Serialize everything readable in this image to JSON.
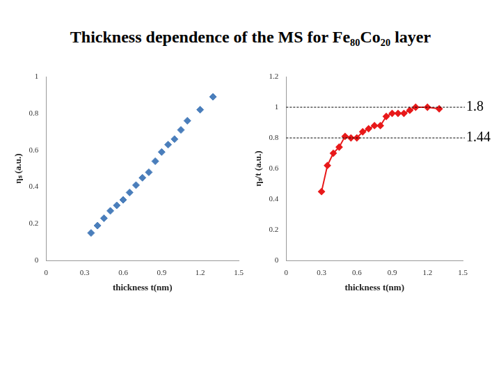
{
  "title": "Thickness dependence of the MS for Fe₈₀Co₂₀ layer",
  "chart_data": [
    {
      "type": "scatter",
      "x_label": "thickness t(nm)",
      "y_label": "ηₛ (a.u.)",
      "x": [
        0.35,
        0.4,
        0.45,
        0.5,
        0.55,
        0.6,
        0.65,
        0.7,
        0.75,
        0.8,
        0.85,
        0.9,
        0.95,
        1.0,
        1.05,
        1.1,
        1.2,
        1.3
      ],
      "values": [
        0.15,
        0.19,
        0.23,
        0.27,
        0.3,
        0.33,
        0.37,
        0.41,
        0.45,
        0.48,
        0.54,
        0.59,
        0.63,
        0.66,
        0.71,
        0.76,
        0.82,
        0.89
      ],
      "color": "#4a7ebb",
      "marker": "diamond",
      "xlim": [
        0,
        1.5
      ],
      "xticks": [
        0,
        0.3,
        0.6,
        0.9,
        1.2,
        1.5
      ],
      "ylim": [
        0,
        1
      ],
      "yticks": [
        0,
        0.2,
        0.4,
        0.6,
        0.8,
        1
      ],
      "grid": false
    },
    {
      "type": "line",
      "x_label": "thickness t(nm)",
      "y_label": "ηₛ/t (a.u.)",
      "x": [
        0.3,
        0.35,
        0.4,
        0.45,
        0.5,
        0.55,
        0.6,
        0.65,
        0.7,
        0.75,
        0.8,
        0.85,
        0.9,
        0.95,
        1.0,
        1.05,
        1.1,
        1.2,
        1.3
      ],
      "values": [
        0.45,
        0.62,
        0.7,
        0.74,
        0.81,
        0.8,
        0.8,
        0.84,
        0.86,
        0.88,
        0.88,
        0.94,
        0.96,
        0.96,
        0.96,
        0.98,
        1.0,
        1.0,
        0.99
      ],
      "color": "#e8191a",
      "marker": "diamond",
      "line_style": "solid",
      "xlim": [
        0,
        1.5
      ],
      "xticks": [
        0,
        0.3,
        0.6,
        0.9,
        1.2,
        1.5
      ],
      "ylim": [
        0,
        1.2
      ],
      "yticks": [
        0,
        0.2,
        0.4,
        0.6,
        0.8,
        1,
        1.2
      ],
      "grid": false,
      "annotations": [
        {
          "y": 1,
          "label": "1.8"
        },
        {
          "y": 0.8,
          "label": "1.44"
        }
      ]
    }
  ]
}
